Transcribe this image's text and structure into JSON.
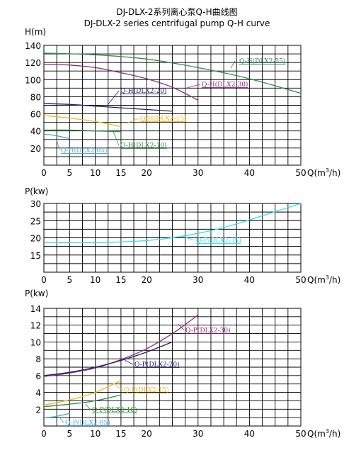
{
  "title": {
    "line1": "DJ-DLX-2系列离心泵Q-H曲线图",
    "line2": "DJ-DLX-2 series centrifugal pump Q-H curve"
  },
  "colors": {
    "dlx2_05": "#4aa3d0",
    "dlx2_10": "#2e8b3e",
    "dlx2_15": "#f2b51f",
    "dlx2_20": "#1f1f6b",
    "dlx2_30": "#8b2a7a",
    "dlx2_35": "#2e8b57",
    "dlx2_35_power": "#2ee0ef"
  },
  "chart_data": [
    {
      "type": "line",
      "ylabel": "H(m)",
      "xlabel_prefix": "Q(m",
      "xlabel_sup": "3",
      "xlabel_suffix": "/h)",
      "xlim": [
        0,
        50
      ],
      "ylim": [
        0,
        140
      ],
      "xticks": [
        0,
        5,
        10,
        15,
        20,
        30,
        40,
        50
      ],
      "yticks": [
        20,
        40,
        60,
        80,
        100,
        120,
        140
      ],
      "grid": true,
      "series": [
        {
          "name": "Q-H(DLX2-35)",
          "color_key": "dlx2_35",
          "x": [
            0,
            10,
            20,
            30,
            40,
            50
          ],
          "y": [
            131,
            129,
            124,
            114,
            101,
            84
          ]
        },
        {
          "name": "Q-H(DLX2-30)",
          "color_key": "dlx2_30",
          "x": [
            0,
            5,
            10,
            15,
            20,
            25,
            30
          ],
          "y": [
            118,
            117,
            114,
            108,
            101,
            91,
            76
          ]
        },
        {
          "name": "Q-H(DLX2-20)",
          "color_key": "dlx2_20",
          "x": [
            0,
            5,
            10,
            15,
            20,
            25
          ],
          "y": [
            72,
            71,
            69,
            67,
            65,
            63
          ]
        },
        {
          "name": "Q-H(DLX2-15)",
          "color_key": "dlx2_15",
          "x": [
            0,
            5,
            10,
            15
          ],
          "y": [
            58,
            55,
            51,
            45
          ]
        },
        {
          "name": "Q-H(DLX2-10)",
          "color_key": "dlx2_10",
          "x": [
            0,
            5,
            10,
            15
          ],
          "y": [
            41,
            41,
            40,
            39
          ]
        },
        {
          "name": "Q-H(DLX2-05)",
          "color_key": "dlx2_05",
          "x": [
            0,
            2,
            5
          ],
          "y": [
            36,
            35,
            31
          ]
        }
      ],
      "annotations": [
        {
          "text": "Q-H(DLX2-35)",
          "series": 0
        },
        {
          "text": "Q-H(DLX2-30)",
          "series": 1
        },
        {
          "text": "Q-H(DLX2-20)",
          "series": 2
        },
        {
          "text": "Q-H(DLX2-15)",
          "series": 3
        },
        {
          "text": "Q-H(DLX2-10)",
          "series": 4
        },
        {
          "text": "Q-H(DLX2-05)",
          "series": 5
        }
      ]
    },
    {
      "type": "line",
      "ylabel": "P(kw)",
      "xlabel_prefix": "Q(m",
      "xlabel_sup": "3",
      "xlabel_suffix": "/h)",
      "xlim": [
        0,
        50
      ],
      "ylim": [
        10,
        30
      ],
      "xticks": [
        0,
        5,
        10,
        15,
        20,
        30,
        40,
        50
      ],
      "yticks": [
        15,
        20,
        25,
        30
      ],
      "grid": true,
      "series": [
        {
          "name": "Q-P(DLX2-35)",
          "color_key": "dlx2_35_power",
          "x": [
            0,
            10,
            15,
            20,
            25,
            30,
            35,
            40,
            45,
            50
          ],
          "y": [
            18.6,
            18.6,
            18.8,
            19.2,
            20.0,
            21.3,
            23.0,
            25.2,
            27.6,
            30.0
          ]
        }
      ],
      "annotations": [
        {
          "text": "Q-P(DLX2-35)",
          "series": 0
        }
      ]
    },
    {
      "type": "line",
      "ylabel": "P(kw)",
      "xlabel_prefix": "Q(m",
      "xlabel_sup": "3",
      "xlabel_suffix": "/h)",
      "xlim": [
        0,
        50
      ],
      "ylim": [
        0,
        14
      ],
      "xticks": [
        0,
        5,
        10,
        15,
        20,
        30,
        40,
        50
      ],
      "yticks": [
        2,
        4,
        6,
        8,
        10,
        12,
        14
      ],
      "grid": true,
      "series": [
        {
          "name": "Q-P(DLX2-30)",
          "color_key": "dlx2_30",
          "x": [
            0,
            5,
            10,
            15,
            20,
            25,
            30
          ],
          "y": [
            5.9,
            6.3,
            6.9,
            7.9,
            9.2,
            11.0,
            13.2
          ]
        },
        {
          "name": "Q-P(DLX2-20)",
          "color_key": "dlx2_20",
          "x": [
            0,
            5,
            10,
            15,
            20,
            25
          ],
          "y": [
            6.0,
            6.4,
            7.0,
            7.8,
            8.8,
            10.0
          ]
        },
        {
          "name": "Q-P(DLX2-15)",
          "color_key": "dlx2_15",
          "x": [
            0,
            5,
            10,
            15
          ],
          "y": [
            2.5,
            3.1,
            4.0,
            5.4
          ]
        },
        {
          "name": "Q-P(DLX2-10)",
          "color_key": "dlx2_10",
          "x": [
            0,
            5,
            10,
            15
          ],
          "y": [
            2.3,
            2.6,
            3.0,
            3.7
          ]
        },
        {
          "name": "Q-P(DLX2-05)",
          "color_key": "dlx2_05",
          "x": [
            0,
            2,
            5
          ],
          "y": [
            1.0,
            1.1,
            1.5
          ]
        }
      ],
      "annotations": [
        {
          "text": "Q-P(DLX2-30)",
          "series": 0
        },
        {
          "text": "Q-P(DLX2-20)",
          "series": 1
        },
        {
          "text": "Q-P(DLX2-15)",
          "series": 2
        },
        {
          "text": "Q-P(DLX2-10)",
          "series": 3
        },
        {
          "text": "Q-P(DLX2-05)",
          "series": 4
        }
      ]
    }
  ]
}
